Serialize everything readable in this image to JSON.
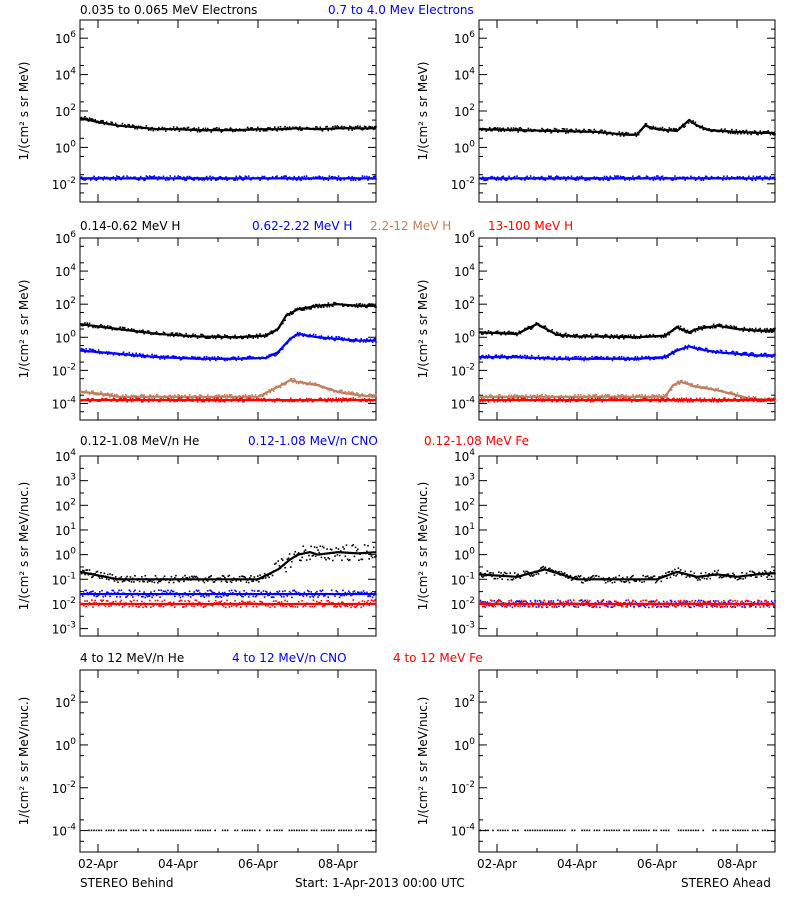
{
  "colors": {
    "black": "#000000",
    "blue": "#0000ff",
    "tan": "#c08060",
    "red": "#ff0000"
  },
  "footer": {
    "left": "STEREO Behind",
    "center": "Start:  1-Apr-2013 00:00 UTC",
    "right": "STEREO Ahead"
  },
  "chart_data": [
    {
      "type": "scatter",
      "row": 0,
      "log_y": true,
      "ylabel_text": "1/(cm² s sr MeV)",
      "legend": [
        {
          "text": "0.035 to 0.065 MeV Electrons",
          "color": "#000000"
        },
        {
          "text": "0.7 to 4.0 Mev Electrons",
          "color": "#0000ff"
        }
      ],
      "y_ticks": [
        "10^-2",
        "10^0",
        "10^2",
        "10^4",
        "10^6"
      ],
      "ylim_log10": [
        -3,
        7
      ],
      "xlim_days": [
        0.55,
        7.95
      ],
      "x_ticks": [
        "02-Apr",
        "04-Apr",
        "06-Apr",
        "08-Apr"
      ],
      "panels": {
        "behind": {
          "series": [
            {
              "name": "0.035 to 0.065 MeV Electrons",
              "color": "#000000",
              "x": [
                0.55,
                1.0,
                1.5,
                2.0,
                2.5,
                3.0,
                3.5,
                4.0,
                4.5,
                5.0,
                5.5,
                6.0,
                6.5,
                7.0,
                7.5,
                7.95
              ],
              "y_log10": [
                1.6,
                1.4,
                1.2,
                1.1,
                1.0,
                1.0,
                0.95,
                0.95,
                0.95,
                1.0,
                1.0,
                1.05,
                1.0,
                1.05,
                1.05,
                1.05
              ]
            },
            {
              "name": "0.7 to 4.0 Mev Electrons",
              "color": "#0000ff",
              "x": [
                0.55,
                7.95
              ],
              "y_log10": [
                -1.7,
                -1.7
              ]
            }
          ]
        },
        "ahead": {
          "series": [
            {
              "name": "0.035 to 0.065 MeV Electrons",
              "color": "#000000",
              "x": [
                0.55,
                1.5,
                2.5,
                3.5,
                4.2,
                4.5,
                4.7,
                5.0,
                5.5,
                5.8,
                6.0,
                6.3,
                6.6,
                7.0,
                7.5,
                7.95
              ],
              "y_log10": [
                1.0,
                0.95,
                0.9,
                0.85,
                0.7,
                0.7,
                1.2,
                1.0,
                0.9,
                1.5,
                1.2,
                0.95,
                0.9,
                0.85,
                0.8,
                0.8
              ]
            },
            {
              "name": "0.7 to 4.0 Mev Electrons",
              "color": "#0000ff",
              "x": [
                0.55,
                7.95
              ],
              "y_log10": [
                -1.7,
                -1.7
              ]
            }
          ]
        }
      }
    },
    {
      "type": "scatter",
      "row": 1,
      "log_y": true,
      "ylabel_text": "1/(cm² s sr MeV)",
      "legend": [
        {
          "text": "0.14-0.62 MeV H",
          "color": "#000000"
        },
        {
          "text": "0.62-2.22 MeV H",
          "color": "#0000ff"
        },
        {
          "text": "2.2-12 MeV H",
          "color": "#c08060"
        },
        {
          "text": "13-100 MeV H",
          "color": "#ff0000"
        }
      ],
      "y_ticks": [
        "10^-4",
        "10^-2",
        "10^0",
        "10^2",
        "10^4",
        "10^6"
      ],
      "ylim_log10": [
        -5,
        6
      ],
      "xlim_days": [
        0.55,
        7.95
      ],
      "x_ticks": [
        "02-Apr",
        "04-Apr",
        "06-Apr",
        "08-Apr"
      ],
      "panels": {
        "behind": {
          "series": [
            {
              "name": "0.14-0.62 MeV H",
              "color": "#000000",
              "x": [
                0.55,
                1.5,
                2.5,
                3.5,
                4.5,
                5.2,
                5.5,
                5.7,
                6.0,
                6.5,
                7.0,
                7.5,
                7.95
              ],
              "y_log10": [
                0.8,
                0.5,
                0.2,
                0.05,
                0.0,
                0.1,
                0.5,
                1.3,
                1.7,
                1.9,
                2.0,
                1.9,
                1.9
              ]
            },
            {
              "name": "0.62-2.22 MeV H",
              "color": "#0000ff",
              "x": [
                0.55,
                1.5,
                2.5,
                3.5,
                4.5,
                5.2,
                5.5,
                5.8,
                6.0,
                6.5,
                7.0,
                7.5,
                7.95
              ],
              "y_log10": [
                -0.8,
                -1.0,
                -1.2,
                -1.3,
                -1.3,
                -1.25,
                -0.9,
                -0.1,
                0.2,
                0.0,
                -0.1,
                -0.2,
                -0.2
              ]
            },
            {
              "name": "2.2-12 MeV H",
              "color": "#c08060",
              "x": [
                0.55,
                1.0,
                1.5,
                2.0,
                2.5,
                3.0,
                3.5,
                4.0,
                4.5,
                5.0,
                5.5,
                5.8,
                6.0,
                6.5,
                7.0,
                7.5,
                7.95
              ],
              "y_log10": [
                -3.3,
                -3.4,
                -3.6,
                -3.6,
                -3.6,
                -3.6,
                -3.6,
                -3.6,
                -3.6,
                -3.6,
                -3.0,
                -2.6,
                -2.7,
                -2.9,
                -3.3,
                -3.5,
                -3.6
              ]
            },
            {
              "name": "13-100 MeV H",
              "color": "#ff0000",
              "x": [
                0.55,
                7.95
              ],
              "y_log10": [
                -3.8,
                -3.8
              ]
            }
          ]
        },
        "ahead": {
          "series": [
            {
              "name": "0.14-0.62 MeV H",
              "color": "#000000",
              "x": [
                0.55,
                1.5,
                2.0,
                2.5,
                3.0,
                3.5,
                4.5,
                5.2,
                5.5,
                5.8,
                6.0,
                6.5,
                7.0,
                7.5,
                7.95
              ],
              "y_log10": [
                0.3,
                0.2,
                0.8,
                0.15,
                0.05,
                0.05,
                0.0,
                0.1,
                0.6,
                0.3,
                0.5,
                0.7,
                0.5,
                0.4,
                0.4
              ]
            },
            {
              "name": "0.62-2.22 MeV H",
              "color": "#0000ff",
              "x": [
                0.55,
                1.5,
                2.5,
                3.5,
                4.5,
                5.2,
                5.5,
                5.8,
                6.0,
                6.5,
                7.0,
                7.5,
                7.95
              ],
              "y_log10": [
                -1.2,
                -1.2,
                -1.3,
                -1.3,
                -1.3,
                -1.2,
                -0.8,
                -0.55,
                -0.7,
                -0.9,
                -1.0,
                -1.1,
                -1.1
              ]
            },
            {
              "name": "2.2-12 MeV H",
              "color": "#c08060",
              "x": [
                0.55,
                2.5,
                4.5,
                5.2,
                5.4,
                5.6,
                6.0,
                6.5,
                7.0,
                7.3,
                7.95
              ],
              "y_log10": [
                -3.6,
                -3.6,
                -3.6,
                -3.6,
                -2.9,
                -2.7,
                -3.0,
                -3.2,
                -3.5,
                -3.7,
                -3.8
              ]
            },
            {
              "name": "13-100 MeV H",
              "color": "#ff0000",
              "x": [
                0.55,
                7.95
              ],
              "y_log10": [
                -3.8,
                -3.8
              ]
            }
          ]
        }
      }
    },
    {
      "type": "scatter",
      "row": 2,
      "log_y": true,
      "ylabel_text": "1/(cm² s sr MeV/nuc.)",
      "legend": [
        {
          "text": "0.12-1.08 MeV/n He",
          "color": "#000000"
        },
        {
          "text": "0.12-1.08 MeV/n CNO",
          "color": "#0000ff"
        },
        {
          "text": "0.12-1.08 MeV Fe",
          "color": "#ff0000"
        }
      ],
      "y_ticks": [
        "10^-3",
        "10^-2",
        "10^-1",
        "10^0",
        "10^1",
        "10^2",
        "10^3",
        "10^4"
      ],
      "ylim_log10": [
        -3.3,
        4
      ],
      "xlim_days": [
        0.55,
        7.95
      ],
      "x_ticks": [
        "02-Apr",
        "04-Apr",
        "06-Apr",
        "08-Apr"
      ],
      "panels": {
        "behind": {
          "series": [
            {
              "name": "0.12-1.08 MeV/n He",
              "color": "#000000",
              "x": [
                0.55,
                1.5,
                2.5,
                3.5,
                4.5,
                5.0,
                5.5,
                5.8,
                6.0,
                6.3,
                6.5,
                7.0,
                7.5,
                7.95
              ],
              "y_log10": [
                -0.7,
                -1.0,
                -1.0,
                -1.0,
                -1.0,
                -1.0,
                -0.6,
                -0.2,
                0.0,
                0.1,
                0.0,
                0.1,
                0.05,
                0.1
              ]
            },
            {
              "name": "0.12-1.08 MeV/n CNO",
              "color": "#0000ff",
              "x": [
                0.55,
                7.95
              ],
              "y_log10": [
                -1.6,
                -1.6
              ]
            },
            {
              "name": "0.12-1.08 MeV Fe",
              "color": "#ff0000",
              "x": [
                0.55,
                7.95
              ],
              "y_log10": [
                -2.0,
                -2.0
              ]
            }
          ]
        },
        "ahead": {
          "series": [
            {
              "name": "0.12-1.08 MeV/n He",
              "color": "#000000",
              "x": [
                0.55,
                1.5,
                2.2,
                3.0,
                4.0,
                5.0,
                5.5,
                6.0,
                6.5,
                7.0,
                7.5,
                7.95
              ],
              "y_log10": [
                -0.8,
                -0.9,
                -0.6,
                -1.0,
                -1.0,
                -1.0,
                -0.7,
                -0.9,
                -0.8,
                -0.9,
                -0.8,
                -0.75
              ]
            },
            {
              "name": "0.12-1.08 MeV/n CNO",
              "color": "#0000ff",
              "x": [
                0.55,
                7.95
              ],
              "y_log10": [
                -2.0,
                -2.0
              ]
            },
            {
              "name": "0.12-1.08 MeV Fe",
              "color": "#ff0000",
              "x": [
                0.55,
                7.95
              ],
              "y_log10": [
                -2.0,
                -2.0
              ]
            }
          ]
        }
      }
    },
    {
      "type": "scatter",
      "row": 3,
      "log_y": true,
      "ylabel_text": "1/(cm² s sr MeV/nuc.)",
      "legend": [
        {
          "text": "4 to 12 MeV/n He",
          "color": "#000000"
        },
        {
          "text": "4 to 12 MeV/n CNO",
          "color": "#0000ff"
        },
        {
          "text": "4 to 12 MeV Fe",
          "color": "#ff0000"
        }
      ],
      "y_ticks": [
        "10^-4",
        "10^-2",
        "10^0",
        "10^2"
      ],
      "ylim_log10": [
        -5,
        3.5
      ],
      "xlim_days": [
        0.55,
        7.95
      ],
      "x_ticks": [
        "02-Apr",
        "04-Apr",
        "06-Apr",
        "08-Apr"
      ],
      "panels": {
        "behind": {
          "series": [
            {
              "name": "4 to 12 MeV/n He",
              "color": "#000000",
              "x": [
                0.6,
                7.9
              ],
              "y_log10": [
                -4.0,
                -4.0
              ]
            }
          ]
        },
        "ahead": {
          "series": [
            {
              "name": "4 to 12 MeV/n He",
              "color": "#000000",
              "x": [
                0.6,
                7.9
              ],
              "y_log10": [
                -4.0,
                -4.0
              ]
            }
          ]
        }
      }
    }
  ]
}
